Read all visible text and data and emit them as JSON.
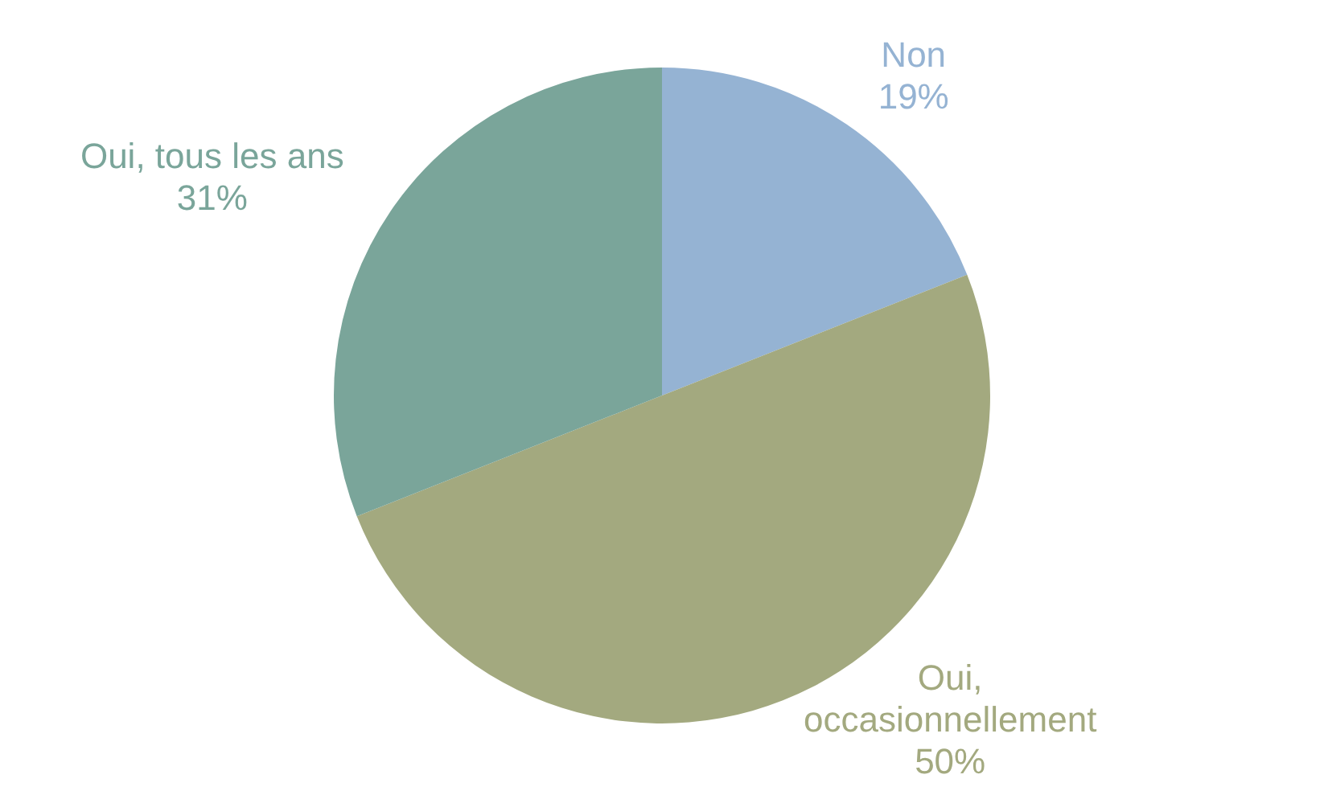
{
  "chart_data": {
    "type": "pie",
    "categories": [
      "Non",
      "Oui, occasionnellement",
      "Oui, tous les ans"
    ],
    "values": [
      19,
      50,
      31
    ],
    "value_labels": [
      "19%",
      "50%",
      "31%"
    ],
    "colors": [
      "#95b3d3",
      "#a3a97f",
      "#7aa59a"
    ],
    "legend": false
  }
}
